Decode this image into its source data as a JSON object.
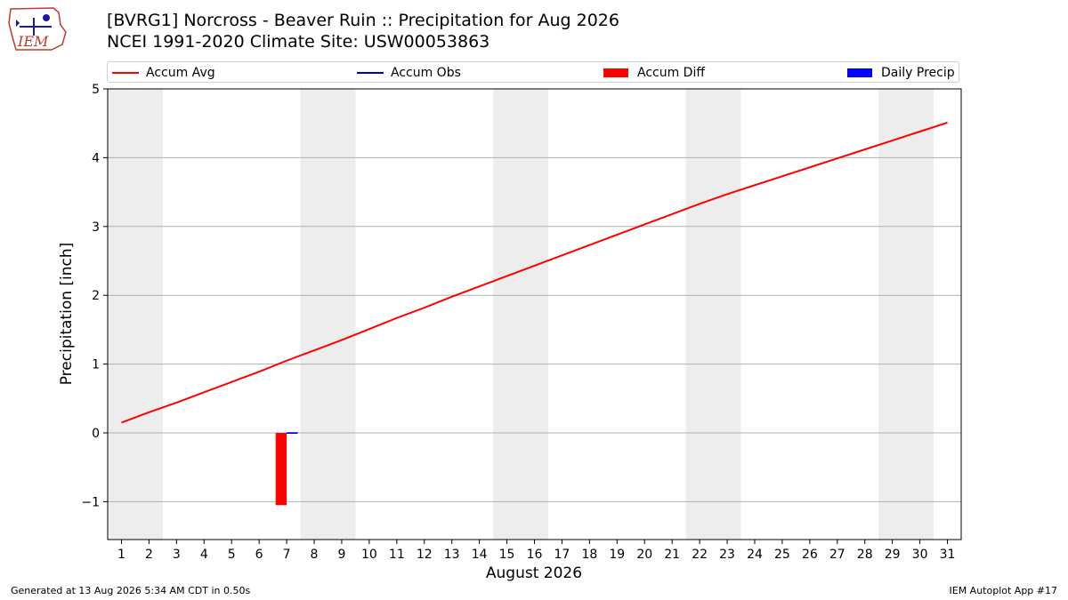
{
  "logo": {
    "text": "IEM"
  },
  "title": {
    "line1": "[BVRG1] Norcross - Beaver Ruin :: Precipitation for Aug 2026",
    "line2": "NCEI 1991-2020 Climate Site: USW00053863"
  },
  "legend": {
    "items": [
      {
        "label": "Accum Avg",
        "color": "#ff0000",
        "kind": "line"
      },
      {
        "label": "Accum Obs",
        "color": "#0000cc",
        "kind": "line"
      },
      {
        "label": "Accum Diff",
        "color": "#ff0000",
        "kind": "patch"
      },
      {
        "label": "Daily Precip",
        "color": "#0000ff",
        "kind": "patch"
      }
    ]
  },
  "colors": {
    "weekend_shade": "#ededed",
    "grid": "#b0b0b0"
  },
  "footer": {
    "left": "Generated at 13 Aug 2026 5:34 AM CDT in 0.50s",
    "right": "IEM Autoplot App #17"
  },
  "chart_data": {
    "type": "line",
    "xlabel": "August 2026",
    "ylabel": "Precipitation [inch]",
    "xlim": [
      0.5,
      31.5
    ],
    "ylim": [
      -1.55,
      5
    ],
    "y_ticks": [
      -1,
      0,
      1,
      2,
      3,
      4,
      5
    ],
    "x_ticks": [
      1,
      2,
      3,
      4,
      5,
      6,
      7,
      8,
      9,
      10,
      11,
      12,
      13,
      14,
      15,
      16,
      17,
      18,
      19,
      20,
      21,
      22,
      23,
      24,
      25,
      26,
      27,
      28,
      29,
      30,
      31
    ],
    "weekend_spans": [
      [
        0.5,
        2.5
      ],
      [
        7.5,
        9.5
      ],
      [
        14.5,
        16.5
      ],
      [
        21.5,
        23.5
      ],
      [
        28.5,
        30.5
      ]
    ],
    "grid": "y-only",
    "series": [
      {
        "name": "Accum Avg",
        "type": "line",
        "x": [
          1,
          2,
          3,
          4,
          5,
          6,
          7,
          8,
          9,
          10,
          11,
          12,
          13,
          14,
          15,
          16,
          17,
          18,
          19,
          20,
          21,
          22,
          23,
          24,
          25,
          26,
          27,
          28,
          29,
          30,
          31
        ],
        "values": [
          0.15,
          0.3,
          0.44,
          0.59,
          0.74,
          0.89,
          1.05,
          1.2,
          1.35,
          1.51,
          1.67,
          1.82,
          1.98,
          2.13,
          2.28,
          2.43,
          2.58,
          2.73,
          2.88,
          3.03,
          3.18,
          3.33,
          3.47,
          3.6,
          3.73,
          3.86,
          3.99,
          4.12,
          4.25,
          4.38,
          4.51
        ]
      },
      {
        "name": "Accum Obs",
        "type": "line",
        "x": [
          7
        ],
        "values": [
          0.0
        ]
      },
      {
        "name": "Accum Diff",
        "type": "bar",
        "x": [
          7
        ],
        "values": [
          -1.05
        ]
      },
      {
        "name": "Daily Precip",
        "type": "bar",
        "x": [
          7
        ],
        "values": [
          0.0
        ]
      }
    ]
  }
}
